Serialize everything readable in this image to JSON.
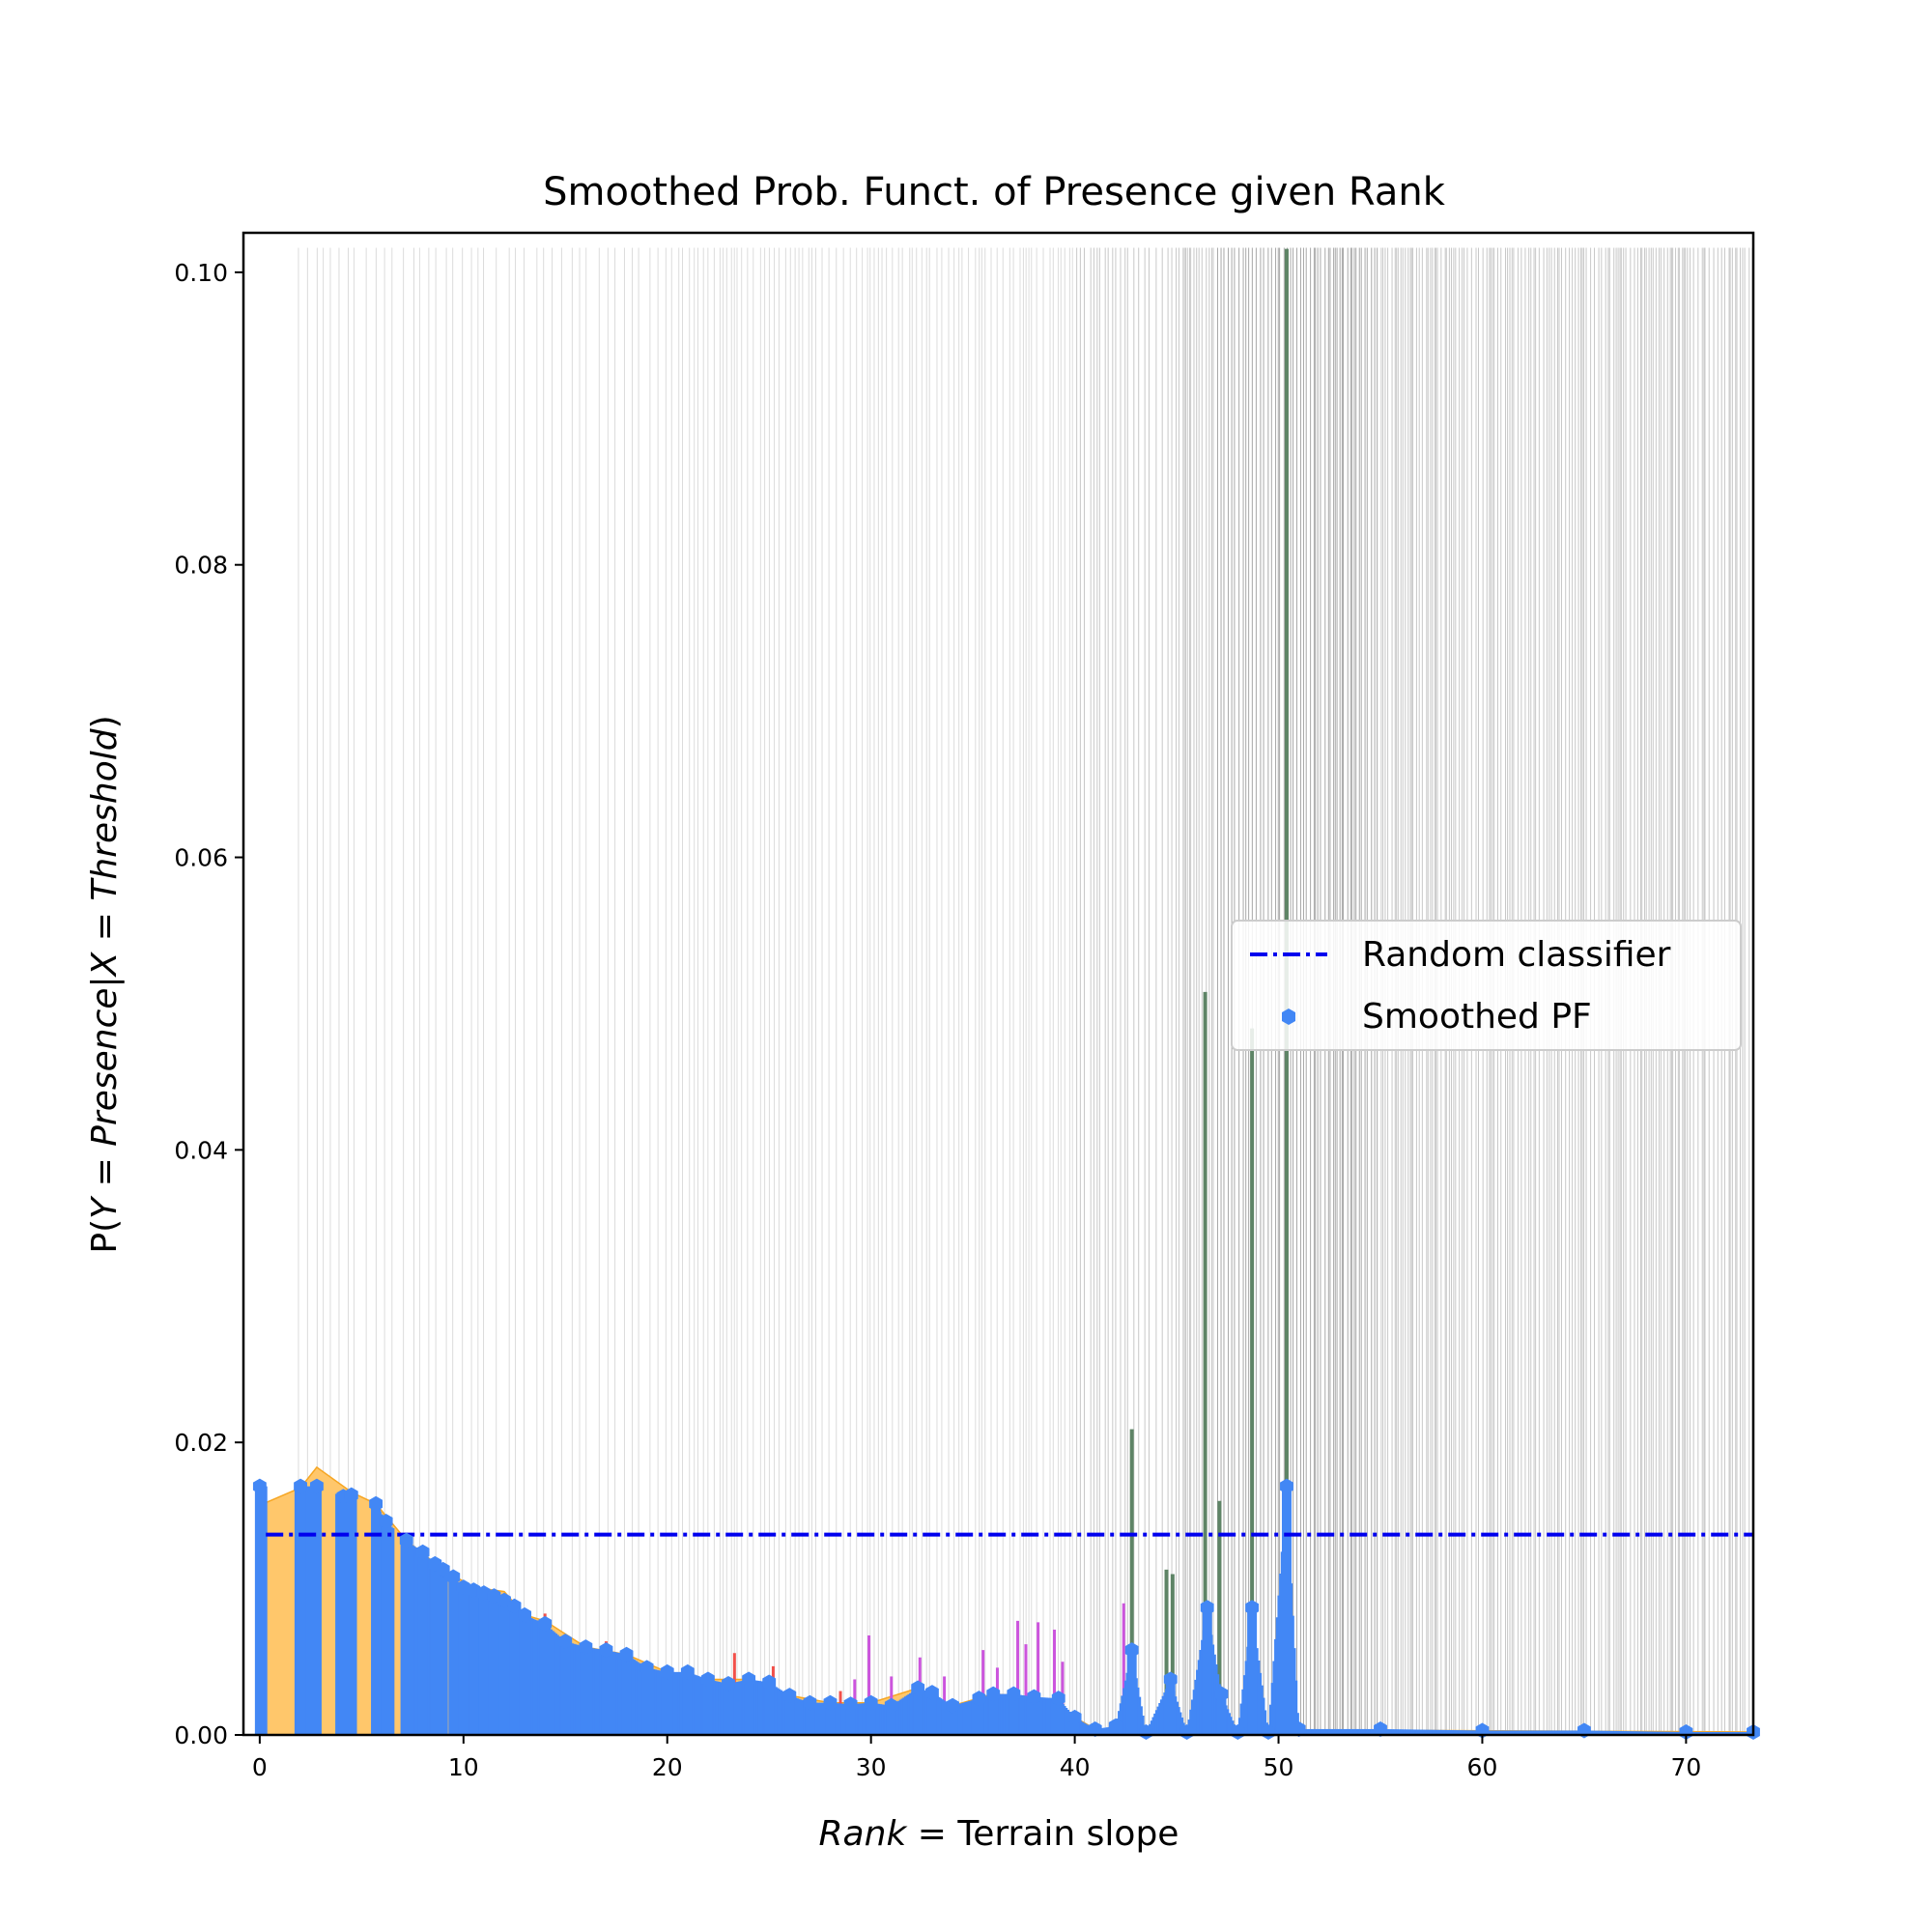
{
  "chart_data": {
    "type": "bar",
    "title": "Smoothed Prob. Funct. of Presence given Rank",
    "xlabel_italic": "Rank",
    "xlabel_rest": " = Terrain slope",
    "ylabel_parts": [
      "P(",
      "Y",
      " = ",
      "Presence",
      "|",
      "X",
      " = ",
      "Threshold",
      ")"
    ],
    "xlim": [
      -0.8,
      73.3
    ],
    "ylim": [
      0,
      0.1027
    ],
    "xticks": [
      0,
      10,
      20,
      30,
      40,
      50,
      60,
      70
    ],
    "xtick_labels": [
      "0",
      "10",
      "20",
      "30",
      "40",
      "50",
      "60",
      "70"
    ],
    "yticks": [
      0.0,
      0.02,
      0.04,
      0.06,
      0.08,
      0.1
    ],
    "ytick_labels": [
      "0.00",
      "0.02",
      "0.04",
      "0.06",
      "0.08",
      "0.10"
    ],
    "legend_position": "center-right",
    "random_classifier": {
      "name": "Random classifier",
      "y": 0.0137,
      "color": "#0000ee"
    },
    "smoothed_pf": {
      "name": "Smoothed PF",
      "color": "#4287f5",
      "points": [
        [
          0.0,
          0.017
        ],
        [
          2.0,
          0.017
        ],
        [
          2.8,
          0.017
        ],
        [
          4.1,
          0.0163
        ],
        [
          4.5,
          0.0164
        ],
        [
          5.7,
          0.0158
        ],
        [
          6.2,
          0.0146
        ],
        [
          7.2,
          0.0133
        ],
        [
          8.0,
          0.0125
        ],
        [
          8.6,
          0.0117
        ],
        [
          9.0,
          0.0113
        ],
        [
          9.5,
          0.0108
        ],
        [
          10.0,
          0.0101
        ],
        [
          10.5,
          0.0099
        ],
        [
          11.0,
          0.0097
        ],
        [
          11.5,
          0.0095
        ],
        [
          12.0,
          0.0092
        ],
        [
          12.5,
          0.0088
        ],
        [
          13.0,
          0.0082
        ],
        [
          14.0,
          0.0076
        ],
        [
          15.0,
          0.0064
        ],
        [
          16.0,
          0.006
        ],
        [
          17.0,
          0.0058
        ],
        [
          18.0,
          0.0055
        ],
        [
          19.0,
          0.0046
        ],
        [
          20.0,
          0.0043
        ],
        [
          21.0,
          0.0043
        ],
        [
          22.0,
          0.0038
        ],
        [
          23.0,
          0.0035
        ],
        [
          24.0,
          0.0038
        ],
        [
          25.0,
          0.0036
        ],
        [
          26.0,
          0.0027
        ],
        [
          27.0,
          0.0022
        ],
        [
          28.0,
          0.0022
        ],
        [
          29.0,
          0.0021
        ],
        [
          30.0,
          0.0022
        ],
        [
          31.0,
          0.002
        ],
        [
          32.3,
          0.0032
        ],
        [
          33.0,
          0.0029
        ],
        [
          34.0,
          0.002
        ],
        [
          35.3,
          0.0025
        ],
        [
          36.0,
          0.0028
        ],
        [
          37.0,
          0.0028
        ],
        [
          38.0,
          0.0026
        ],
        [
          39.2,
          0.0025
        ],
        [
          40.0,
          0.0012
        ],
        [
          41.0,
          0.0004
        ],
        [
          42.0,
          0.0006
        ],
        [
          42.8,
          0.0058
        ],
        [
          43.5,
          0.0002
        ],
        [
          44.7,
          0.0038
        ],
        [
          45.5,
          0.0002
        ],
        [
          46.5,
          0.0087
        ],
        [
          47.2,
          0.0028
        ],
        [
          48.0,
          0.0002
        ],
        [
          48.7,
          0.0087
        ],
        [
          49.5,
          0.0002
        ],
        [
          50.4,
          0.017
        ],
        [
          51.0,
          0.0004
        ],
        [
          55.0,
          0.0004
        ],
        [
          60.0,
          0.0003
        ],
        [
          65.0,
          0.0003
        ],
        [
          70.0,
          0.0002
        ],
        [
          73.3,
          0.0002
        ]
      ]
    },
    "orange_band": [
      [
        0.0,
        0.0157
      ],
      [
        1.0,
        0.0163
      ],
      [
        2.0,
        0.0169
      ],
      [
        2.8,
        0.0183
      ],
      [
        4.5,
        0.0166
      ],
      [
        5.7,
        0.0158
      ],
      [
        7.2,
        0.0133
      ],
      [
        9.0,
        0.0113
      ],
      [
        10.5,
        0.0101
      ],
      [
        12.0,
        0.0098
      ],
      [
        13.0,
        0.0082
      ],
      [
        14.0,
        0.0078
      ],
      [
        16.0,
        0.006
      ],
      [
        18.0,
        0.0055
      ],
      [
        20.0,
        0.0043
      ],
      [
        22.0,
        0.0038
      ],
      [
        24.0,
        0.0038
      ],
      [
        26.0,
        0.0027
      ],
      [
        28.0,
        0.0022
      ],
      [
        30.0,
        0.0022
      ],
      [
        32.3,
        0.0032
      ],
      [
        34.0,
        0.002
      ],
      [
        36.0,
        0.0028
      ],
      [
        38.0,
        0.0026
      ],
      [
        40.0,
        0.0012
      ],
      [
        41.0,
        0.0004
      ],
      [
        73.3,
        0.0002
      ]
    ],
    "red_spikes": [
      [
        14.0,
        0.0083
      ],
      [
        17.0,
        0.0064
      ],
      [
        23.3,
        0.0056
      ],
      [
        25.2,
        0.0047
      ],
      [
        28.5,
        0.003
      ]
    ],
    "magenta_spikes": [
      [
        29.2,
        0.0038
      ],
      [
        29.9,
        0.0068
      ],
      [
        31.0,
        0.004
      ],
      [
        32.4,
        0.0053
      ],
      [
        33.6,
        0.004
      ],
      [
        35.5,
        0.0058
      ],
      [
        36.2,
        0.0046
      ],
      [
        37.2,
        0.0078
      ],
      [
        37.6,
        0.0062
      ],
      [
        38.2,
        0.0077
      ],
      [
        39.0,
        0.0072
      ],
      [
        39.4,
        0.005
      ],
      [
        42.4,
        0.009
      ]
    ],
    "dark_spikes": [
      [
        42.8,
        0.0209
      ],
      [
        44.5,
        0.0113
      ],
      [
        44.8,
        0.011
      ],
      [
        46.4,
        0.0508
      ],
      [
        47.1,
        0.016
      ],
      [
        48.7,
        0.0483
      ],
      [
        50.4,
        0.1016
      ]
    ]
  }
}
